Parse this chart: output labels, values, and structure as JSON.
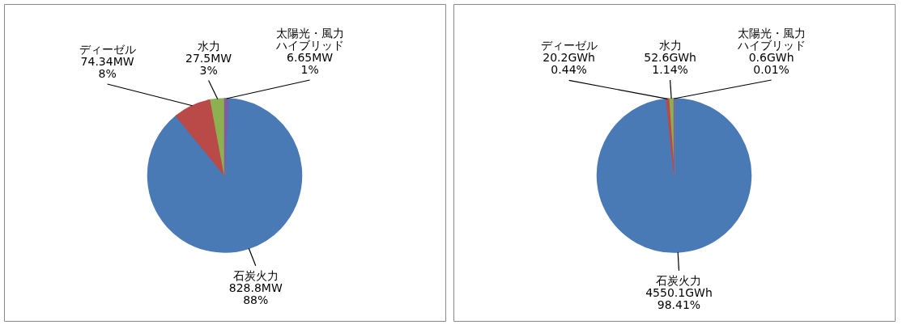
{
  "chart_data": [
    {
      "type": "pie",
      "categories": [
        "太陽光・風力ハイブリッド",
        "石炭火力",
        "ディーゼル",
        "水力"
      ],
      "values": [
        6.65,
        828.8,
        74.34,
        27.5
      ],
      "colors": [
        "#7d5fa0",
        "#4a7ab5",
        "#b94a48",
        "#8db150"
      ],
      "value_labels": [
        "6.65MW\n1%",
        "828.8MW\n88%",
        "74.34MW\n8%",
        "27.5MW\n3%"
      ]
    },
    {
      "type": "pie",
      "categories": [
        "太陽光・風力ハイブリッド",
        "石炭火力",
        "ディーゼル",
        "水力"
      ],
      "values": [
        0.6,
        4550.1,
        20.2,
        52.6
      ],
      "colors": [
        "#7d5fa0",
        "#4a7ab5",
        "#b94a48",
        "#8db150"
      ],
      "value_labels": [
        "0.6GWh\n0.01%",
        "4550.1GWh\n98.41%",
        "20.2GWh\n0.44%",
        "52.6GWh\n1.14%"
      ]
    }
  ]
}
